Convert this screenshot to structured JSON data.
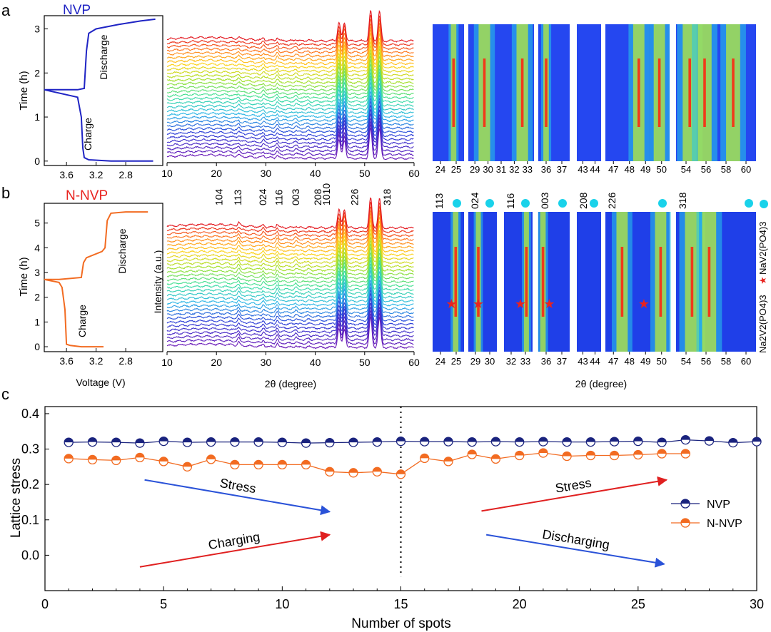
{
  "panel_labels": {
    "a": "a",
    "b": "b",
    "c": "c"
  },
  "colors": {
    "nvp": "#1a237e",
    "n_nvp": "#f26b21",
    "nvp_title": "#1f24c4",
    "n_nvp_title": "#e8231f",
    "stress_blue": "#2a52d8",
    "arrow_red": "#e02020",
    "star": "#e8231f",
    "dot": "#19d2ea",
    "heat_bg": "#1f3fe8"
  },
  "chart_data": [
    {
      "id": "a_time_voltage",
      "type": "line",
      "title": "NVP",
      "ylabel": "Time (h)",
      "xlabel": "",
      "xlim": [
        3.9,
        2.3
      ],
      "ylim": [
        -0.1,
        3.3
      ],
      "xticks": [
        3.6,
        3.2,
        2.8
      ],
      "xtick_labels": [
        "3.6",
        "3.2",
        "2.8"
      ],
      "yticks": [
        0,
        1,
        2,
        3
      ],
      "ytick_labels": [
        "0",
        "1",
        "2",
        "3"
      ],
      "annotations": [
        "Charge",
        "Discharge"
      ],
      "x": [
        2.43,
        3.0,
        3.3,
        3.36,
        3.38,
        3.4,
        3.45,
        3.9,
        3.9,
        3.45,
        3.36,
        3.33,
        3.3,
        3.2,
        2.9,
        2.6,
        2.4
      ],
      "y": [
        0.0,
        0.0,
        0.03,
        0.08,
        0.3,
        1.0,
        1.45,
        1.62,
        1.62,
        1.62,
        1.65,
        2.5,
        2.9,
        3.0,
        3.1,
        3.18,
        3.22
      ]
    },
    {
      "id": "a_xrd",
      "type": "line",
      "title": "",
      "xlabel": "",
      "ylabel": "",
      "xlim": [
        10,
        60
      ],
      "xticks": [
        10,
        20,
        30,
        40,
        50,
        60
      ],
      "xtick_labels": [
        "10",
        "20",
        "30",
        "40",
        "50",
        "60"
      ],
      "n_scans": 32,
      "peaks_2theta": [
        24.5,
        29.5,
        32.3,
        36.1,
        38.6,
        43.6,
        44.8,
        45.9,
        51.2,
        53.0
      ],
      "peak_intensity": [
        0.1,
        0.12,
        0.15,
        0.08,
        0.06,
        0.05,
        1.0,
        1.0,
        1.6,
        1.6
      ]
    },
    {
      "id": "a_contour",
      "type": "heatmap",
      "xlabel": "",
      "windows": [
        {
          "range": [
            23.5,
            25
          ],
          "ticks": [
            "24",
            "25"
          ],
          "bands": [
            24.5
          ]
        },
        {
          "range": [
            28.5,
            33
          ],
          "ticks": [
            "29",
            "30",
            "31",
            "32",
            "33"
          ],
          "bands": [
            29.6,
            32.2
          ]
        },
        {
          "range": [
            35.5,
            37.5
          ],
          "ticks": [
            "36",
            "37"
          ],
          "bands": [
            36.0
          ]
        },
        {
          "range": [
            42.8,
            44.5
          ],
          "ticks": [
            "43",
            "44"
          ],
          "bands": []
        },
        {
          "range": [
            46,
            51
          ],
          "ticks": [
            "47",
            "48",
            "49",
            "50"
          ],
          "bands": [
            48.6,
            50.2
          ]
        },
        {
          "range": [
            53,
            60
          ],
          "ticks": [
            "54",
            "56",
            "58",
            "60"
          ],
          "bands": [
            54.2,
            55.5,
            58.0
          ]
        }
      ]
    },
    {
      "id": "b_time_voltage",
      "type": "line",
      "title": "N-NVP",
      "ylabel": "Time (h)",
      "xlabel": "Voltage (V)",
      "xlim": [
        3.9,
        2.3
      ],
      "ylim": [
        -0.2,
        5.8
      ],
      "xticks": [
        3.6,
        3.2,
        2.8
      ],
      "xtick_labels": [
        "3.6",
        "3.2",
        "2.8"
      ],
      "yticks": [
        0,
        1,
        2,
        3,
        4,
        5
      ],
      "ytick_labels": [
        "0",
        "1",
        "2",
        "3",
        "4",
        "5"
      ],
      "annotations": [
        "Charge",
        "Discharge"
      ],
      "x": [
        3.1,
        3.4,
        3.55,
        3.6,
        3.62,
        3.66,
        3.7,
        3.9,
        3.9,
        3.7,
        3.4,
        3.37,
        3.33,
        3.12,
        3.08,
        3.05,
        3.0,
        2.8,
        2.5
      ],
      "y": [
        0.0,
        0.0,
        0.05,
        0.1,
        1.5,
        2.4,
        2.6,
        2.72,
        2.72,
        2.72,
        2.8,
        3.4,
        3.6,
        3.85,
        4.0,
        5.1,
        5.4,
        5.45,
        5.45
      ]
    },
    {
      "id": "b_xrd",
      "type": "line",
      "title": "",
      "xlabel": "2θ (degree)",
      "ylabel": "Intensity (a.u.)",
      "xlim": [
        10,
        60
      ],
      "xticks": [
        10,
        20,
        30,
        40,
        50,
        60
      ],
      "xtick_labels": [
        "10",
        "20",
        "30",
        "40",
        "50",
        "60"
      ],
      "n_scans": 32,
      "peaks_2theta": [
        24.5,
        29.5,
        32.3,
        36.1,
        38.6,
        43.6,
        44.8,
        45.9,
        51.2,
        53.0
      ],
      "peak_intensity": [
        0.18,
        0.14,
        0.2,
        0.1,
        0.06,
        0.06,
        1.0,
        1.0,
        1.6,
        1.6
      ],
      "peak_labels": [
        {
          "label": "104",
          "x": 20.5
        },
        {
          "label": "113",
          "x": 24.3
        },
        {
          "label": "024",
          "x": 29.4
        },
        {
          "label": "116",
          "x": 32.6
        },
        {
          "label": "003",
          "x": 36.0
        },
        {
          "label": "208",
          "x": 40.5
        },
        {
          "label": "1010",
          "x": 42.2
        },
        {
          "label": "226",
          "x": 47.9
        },
        {
          "label": "318",
          "x": 54.5
        }
      ]
    },
    {
      "id": "b_contour",
      "type": "heatmap",
      "xlabel": "2θ (degree)",
      "windows": [
        {
          "range": [
            23.5,
            25
          ],
          "ticks": [
            "24",
            "25"
          ],
          "bands": [
            24.6
          ],
          "label": "113",
          "star_x": 24.4
        },
        {
          "range": [
            28.5,
            30.5
          ],
          "ticks": [
            "29",
            "30"
          ],
          "bands": [
            29.2
          ],
          "label": "024",
          "star_x": 29.2
        },
        {
          "range": [
            31.8,
            33.2
          ],
          "ticks": [
            "32",
            "33"
          ],
          "bands": [
            32.9
          ],
          "label": "116",
          "star_x": 32.6
        },
        {
          "range": [
            35.5,
            37.5
          ],
          "ticks": [
            "36",
            "37"
          ],
          "bands": [
            35.8
          ],
          "label": "003",
          "star_x": 36.2
        },
        {
          "range": [
            42.8,
            44.5
          ],
          "ticks": [
            "43",
            "44"
          ],
          "bands": [],
          "label": "208"
        },
        {
          "range": [
            46,
            51
          ],
          "ticks": [
            "47",
            "48",
            "49",
            "50"
          ],
          "bands": [
            47.3,
            50.3
          ],
          "label": "226",
          "star_x": 49.0
        },
        {
          "range": [
            53,
            60
          ],
          "ticks": [
            "54",
            "56",
            "58",
            "60"
          ],
          "bands": [
            54.4,
            55.9
          ],
          "label": "318"
        }
      ],
      "legend": {
        "star": "Na2V2(PO4)3",
        "dot": "NaV2(PO4)3"
      }
    },
    {
      "id": "c_lattice_stress",
      "type": "scatter",
      "title": "",
      "xlabel": "Number of spots",
      "ylabel": "Lattice stress",
      "xlim": [
        0,
        30
      ],
      "ylim": [
        -0.1,
        0.42
      ],
      "xticks": [
        0,
        5,
        10,
        15,
        20,
        25,
        30
      ],
      "xtick_labels": [
        "0",
        "5",
        "10",
        "15",
        "20",
        "25",
        "30"
      ],
      "yticks": [
        0.0,
        0.1,
        0.2,
        0.3,
        0.4
      ],
      "ytick_labels": [
        "0.0",
        "0.1",
        "0.2",
        "0.3",
        "0.4"
      ],
      "legend_position": "center-right",
      "divider_x": 15,
      "series": [
        {
          "name": "NVP",
          "x": [
            1,
            2,
            3,
            4,
            5,
            6,
            7,
            8,
            9,
            10,
            11,
            12,
            13,
            14,
            15,
            16,
            17,
            18,
            19,
            20,
            21,
            22,
            23,
            24,
            25,
            26,
            27,
            28,
            29,
            30
          ],
          "values": [
            0.319,
            0.32,
            0.319,
            0.317,
            0.322,
            0.319,
            0.32,
            0.32,
            0.32,
            0.319,
            0.317,
            0.318,
            0.319,
            0.32,
            0.322,
            0.321,
            0.321,
            0.32,
            0.321,
            0.32,
            0.321,
            0.32,
            0.32,
            0.321,
            0.322,
            0.319,
            0.326,
            0.323,
            0.318,
            0.321
          ]
        },
        {
          "name": "N-NVP",
          "x": [
            1,
            2,
            3,
            4,
            5,
            6,
            7,
            8,
            9,
            10,
            11,
            12,
            13,
            14,
            15,
            16,
            17,
            18,
            19,
            20,
            21,
            22,
            23,
            24,
            25,
            26,
            27
          ],
          "values": [
            0.273,
            0.27,
            0.268,
            0.276,
            0.265,
            0.25,
            0.271,
            0.256,
            0.256,
            0.256,
            0.256,
            0.236,
            0.233,
            0.236,
            0.229,
            0.274,
            0.265,
            0.285,
            0.272,
            0.282,
            0.289,
            0.28,
            0.282,
            0.282,
            0.284,
            0.287,
            0.287
          ]
        }
      ],
      "annotations": [
        {
          "text": "Stress",
          "color": "blue",
          "from": [
            4.2,
            0.213
          ],
          "to": [
            12,
            0.123
          ]
        },
        {
          "text": "Charging",
          "color": "red",
          "from": [
            4.0,
            -0.033
          ],
          "to": [
            12,
            0.058
          ]
        },
        {
          "text": "Stress",
          "color": "red",
          "from": [
            18.4,
            0.125
          ],
          "to": [
            26.2,
            0.213
          ]
        },
        {
          "text": "Discharging",
          "color": "blue",
          "from": [
            18.6,
            0.058
          ],
          "to": [
            26.1,
            -0.025
          ]
        }
      ]
    }
  ]
}
